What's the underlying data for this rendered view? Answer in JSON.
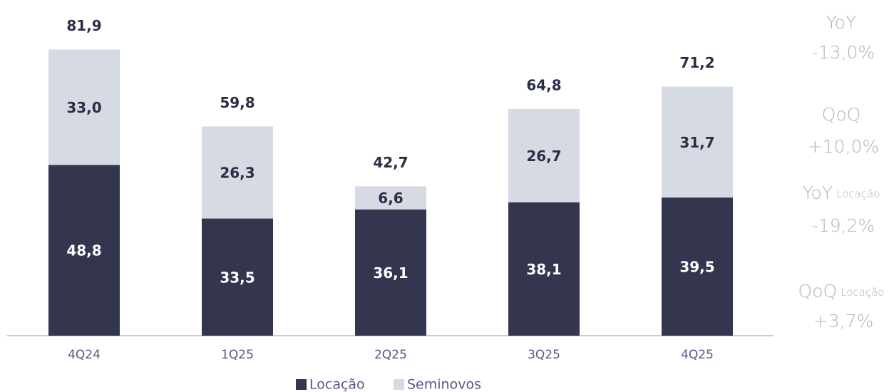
{
  "chart_data": {
    "type": "stacked_bar",
    "categories": [
      "4Q24",
      "1Q25",
      "2Q25",
      "3Q25",
      "4Q25"
    ],
    "series": [
      {
        "name": "Locação",
        "color": "#343650",
        "values": [
          48.8,
          33.5,
          36.1,
          38.1,
          39.5
        ],
        "value_labels": [
          "48,8",
          "33,5",
          "36,1",
          "38,1",
          "39,5"
        ]
      },
      {
        "name": "Seminovos",
        "color": "#d5dae3",
        "values": [
          33.0,
          26.3,
          6.6,
          26.7,
          31.7
        ],
        "value_labels": [
          "33,0",
          "26,3",
          "6,6",
          "26,7",
          "31,7"
        ]
      }
    ],
    "totals": {
      "values": [
        81.9,
        59.8,
        42.7,
        64.8,
        71.2
      ],
      "value_labels": [
        "81,9",
        "59,8",
        "42,7",
        "64,8",
        "71,2"
      ]
    },
    "annotations": [
      {
        "label": "YoY",
        "value": "-13,0%"
      },
      {
        "label": "QoQ",
        "value": "+10,0%"
      },
      {
        "label": "YoY",
        "sublabel": "Locação",
        "value": "-19,2%"
      },
      {
        "label": "QoQ",
        "sublabel": "Locação",
        "value": "+3,7%"
      }
    ]
  }
}
